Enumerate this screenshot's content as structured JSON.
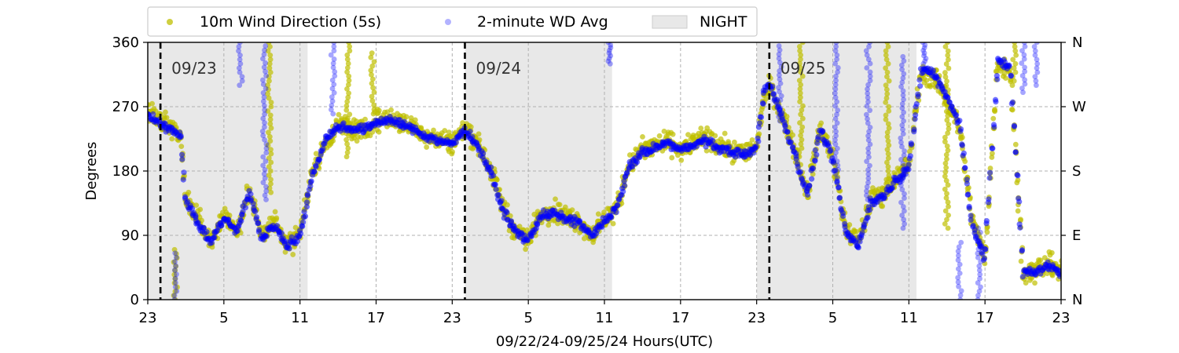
{
  "chart_data": {
    "type": "scatter",
    "xlabel": "09/22/24-09/25/24  Hours(UTC)",
    "ylabel": "Degrees",
    "x_unit": "hours since 09/22 23:00 UTC",
    "xlim": [
      0,
      72
    ],
    "ylim": [
      0,
      360
    ],
    "x_ticks": [
      {
        "x": 0,
        "label": "23"
      },
      {
        "x": 6,
        "label": "5"
      },
      {
        "x": 12,
        "label": "11"
      },
      {
        "x": 18,
        "label": "17"
      },
      {
        "x": 24,
        "label": "23"
      },
      {
        "x": 30,
        "label": "5"
      },
      {
        "x": 36,
        "label": "11"
      },
      {
        "x": 42,
        "label": "17"
      },
      {
        "x": 48,
        "label": "23"
      },
      {
        "x": 54,
        "label": "5"
      },
      {
        "x": 60,
        "label": "11"
      },
      {
        "x": 66,
        "label": "17"
      },
      {
        "x": 72,
        "label": "23"
      }
    ],
    "y_ticks": [
      0,
      90,
      180,
      270,
      360
    ],
    "y2_ticks": [
      {
        "y": 0,
        "label": "N"
      },
      {
        "y": 90,
        "label": "E"
      },
      {
        "y": 180,
        "label": "S"
      },
      {
        "y": 270,
        "label": "W"
      },
      {
        "y": 360,
        "label": "N"
      }
    ],
    "grid": true,
    "legend_position": "top-left, above plot",
    "legend": [
      {
        "key": "wd5s",
        "label": "10m Wind Direction (5s)",
        "color": "#bfbf00"
      },
      {
        "key": "wd2m",
        "label": "2-minute WD Avg",
        "color": "#0000ff"
      },
      {
        "key": "night",
        "label": "NIGHT",
        "color": "#e8e8e8"
      }
    ],
    "night_periods": [
      [
        0,
        12.6
      ],
      [
        25,
        36.6
      ],
      [
        48,
        60.6
      ]
    ],
    "day_markers": [
      {
        "x": 1,
        "label": "09/23"
      },
      {
        "x": 25,
        "label": "09/24"
      },
      {
        "x": 49,
        "label": "09/25"
      }
    ],
    "series": [
      {
        "name": "10m Wind Direction (5s)",
        "color": "#bfbf00",
        "spread_deg": 22,
        "x": [
          0,
          1,
          2,
          2.6,
          3,
          4,
          5,
          6,
          7,
          8,
          9,
          10,
          11,
          12,
          13,
          14,
          15,
          16,
          17,
          18,
          19,
          20,
          21,
          22,
          23,
          24,
          25,
          26,
          27,
          28,
          29,
          30,
          31,
          32,
          33,
          34,
          35,
          36,
          37,
          38,
          39,
          40,
          41,
          42,
          43,
          44,
          45,
          46,
          47,
          48,
          48.5,
          49,
          50,
          51,
          52,
          53,
          54,
          55,
          56,
          57,
          58,
          59,
          60,
          61,
          62,
          63,
          64,
          65,
          66,
          67,
          68,
          69,
          70,
          71,
          72
        ],
        "y": [
          265,
          248,
          240,
          225,
          140,
          110,
          80,
          120,
          95,
          150,
          90,
          110,
          75,
          95,
          180,
          220,
          245,
          240,
          235,
          250,
          255,
          248,
          240,
          230,
          225,
          220,
          240,
          220,
          185,
          130,
          95,
          85,
          120,
          125,
          115,
          110,
          90,
          110,
          130,
          190,
          210,
          215,
          222,
          210,
          220,
          225,
          215,
          210,
          205,
          215,
          280,
          300,
          260,
          210,
          150,
          240,
          200,
          100,
          80,
          140,
          150,
          170,
          190,
          320,
          310,
          280,
          240,
          110,
          60,
          330,
          320,
          40,
          40,
          50,
          40
        ]
      },
      {
        "name": "2-minute WD Avg",
        "color": "#0000ff",
        "spread_deg": 9,
        "x": [
          0,
          1,
          2,
          2.6,
          3,
          4,
          5,
          6,
          7,
          8,
          9,
          10,
          11,
          12,
          13,
          14,
          15,
          16,
          17,
          18,
          19,
          20,
          21,
          22,
          23,
          24,
          25,
          26,
          27,
          28,
          29,
          30,
          31,
          32,
          33,
          34,
          35,
          36,
          37,
          38,
          39,
          40,
          41,
          42,
          43,
          44,
          45,
          46,
          47,
          48,
          48.5,
          49,
          50,
          51,
          52,
          53,
          54,
          55,
          56,
          57,
          58,
          59,
          60,
          61,
          62,
          63,
          64,
          65,
          66,
          67,
          68,
          69,
          70,
          71,
          72
        ],
        "y": [
          258,
          245,
          238,
          230,
          140,
          105,
          80,
          115,
          95,
          150,
          85,
          105,
          75,
          90,
          175,
          225,
          242,
          240,
          238,
          248,
          252,
          245,
          238,
          228,
          222,
          218,
          238,
          215,
          180,
          125,
          95,
          82,
          118,
          120,
          112,
          108,
          88,
          110,
          128,
          188,
          205,
          212,
          220,
          208,
          218,
          222,
          212,
          208,
          202,
          212,
          285,
          305,
          255,
          205,
          145,
          240,
          195,
          95,
          75,
          135,
          145,
          168,
          185,
          325,
          315,
          285,
          245,
          105,
          55,
          335,
          325,
          38,
          38,
          48,
          38
        ]
      }
    ],
    "wrap_spikes": [
      {
        "series": "wd5s",
        "x": 2.2,
        "y0": 0,
        "y1": 70
      },
      {
        "series": "wd2m",
        "x": 2.2,
        "y0": 0,
        "y1": 65
      },
      {
        "series": "wd2m",
        "x": 7.3,
        "y0": 300,
        "y1": 360
      },
      {
        "series": "wd2m",
        "x": 9.2,
        "y0": 140,
        "y1": 355
      },
      {
        "series": "wd5s",
        "x": 9.6,
        "y0": 150,
        "y1": 360
      },
      {
        "series": "wd2m",
        "x": 14.6,
        "y0": 260,
        "y1": 360
      },
      {
        "series": "wd5s",
        "x": 15.8,
        "y0": 200,
        "y1": 360
      },
      {
        "series": "wd5s",
        "x": 17.7,
        "y0": 260,
        "y1": 345
      },
      {
        "series": "wd2m",
        "x": 36.4,
        "y0": 330,
        "y1": 360
      },
      {
        "series": "wd2m",
        "x": 49.8,
        "y0": 250,
        "y1": 355
      },
      {
        "series": "wd5s",
        "x": 51.5,
        "y0": 200,
        "y1": 360
      },
      {
        "series": "wd2m",
        "x": 54.3,
        "y0": 170,
        "y1": 360
      },
      {
        "series": "wd2m",
        "x": 56.8,
        "y0": 140,
        "y1": 360
      },
      {
        "series": "wd5s",
        "x": 58.3,
        "y0": 150,
        "y1": 360
      },
      {
        "series": "wd2m",
        "x": 59.5,
        "y0": 100,
        "y1": 340
      },
      {
        "series": "wd2m",
        "x": 61.2,
        "y0": 330,
        "y1": 360
      },
      {
        "series": "wd5s",
        "x": 63.0,
        "y0": 100,
        "y1": 360
      },
      {
        "series": "wd2m",
        "x": 64.0,
        "y0": 0,
        "y1": 80
      },
      {
        "series": "wd2m",
        "x": 65.5,
        "y0": 0,
        "y1": 100
      },
      {
        "series": "wd5s",
        "x": 68.3,
        "y0": 300,
        "y1": 360
      },
      {
        "series": "wd2m",
        "x": 69.0,
        "y0": 290,
        "y1": 360
      },
      {
        "series": "wd2m",
        "x": 70.0,
        "y0": 300,
        "y1": 360
      }
    ]
  }
}
